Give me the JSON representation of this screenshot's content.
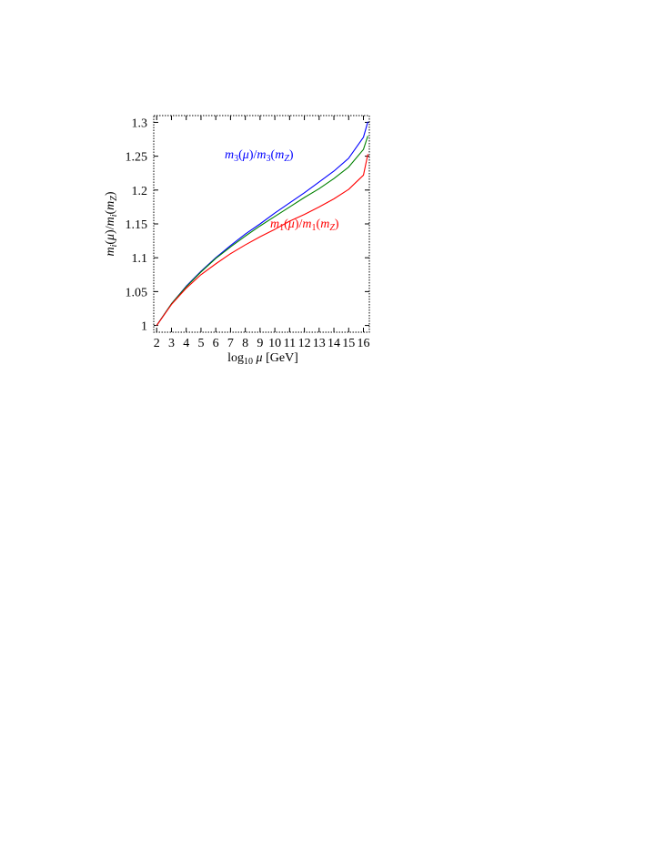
{
  "chart_data": {
    "type": "line",
    "title": "",
    "xlabel": {
      "text": "log",
      "sub": "10",
      "mid": " μ",
      "tail": " [GeV]"
    },
    "ylabel": "m_i(μ)/m_i(m_Z)",
    "xlim": [
      1.8,
      16.4
    ],
    "ylim": [
      0.99,
      1.31
    ],
    "x_ticks": [
      2,
      3,
      4,
      5,
      6,
      7,
      8,
      9,
      10,
      11,
      12,
      13,
      14,
      15,
      16
    ],
    "x_tick_labels": [
      "2",
      "3",
      "4",
      "5",
      "6",
      "7",
      "8",
      "9",
      "10",
      "11",
      "12",
      "13",
      "14",
      "15",
      "16"
    ],
    "y_ticks": [
      1,
      1.05,
      1.1,
      1.15,
      1.2,
      1.25,
      1.3
    ],
    "y_tick_labels": [
      "1",
      "1.05",
      "1.1",
      "1.15",
      "1.2",
      "1.25",
      "1.3"
    ],
    "grid": false,
    "series": [
      {
        "color": "#0000ff",
        "x": [
          2,
          3,
          4,
          5,
          6,
          7,
          8,
          9,
          10,
          11,
          12,
          13,
          14,
          15,
          16,
          16.3
        ],
        "y": [
          1.0,
          1.032,
          1.058,
          1.08,
          1.1,
          1.118,
          1.135,
          1.15,
          1.166,
          1.181,
          1.196,
          1.212,
          1.228,
          1.247,
          1.278,
          1.301
        ]
      },
      {
        "color": "#008000",
        "x": [
          2,
          3,
          4,
          5,
          6,
          7,
          8,
          9,
          10,
          11,
          12,
          13,
          14,
          15,
          16,
          16.3
        ],
        "y": [
          1.0,
          1.032,
          1.057,
          1.079,
          1.099,
          1.116,
          1.132,
          1.147,
          1.161,
          1.175,
          1.189,
          1.202,
          1.217,
          1.234,
          1.26,
          1.28
        ]
      },
      {
        "color": "#ff0000",
        "x": [
          2,
          3,
          4,
          5,
          6,
          7,
          8,
          9,
          10,
          11,
          12,
          13,
          14,
          15,
          16,
          16.3
        ],
        "y": [
          1.0,
          1.031,
          1.055,
          1.075,
          1.091,
          1.106,
          1.119,
          1.131,
          1.142,
          1.154,
          1.164,
          1.175,
          1.187,
          1.201,
          1.222,
          1.253
        ]
      }
    ],
    "annotations": [
      {
        "series_index": 0,
        "text": "m₃(μ)/m₃(m_Z)",
        "color": "#0000ff",
        "x": 7.8,
        "y": 1.243
      },
      {
        "series_index": 2,
        "text": "m₁(μ)/m₁(m_Z)",
        "color": "#ff0000",
        "x": 11.7,
        "y": 1.148
      }
    ]
  }
}
